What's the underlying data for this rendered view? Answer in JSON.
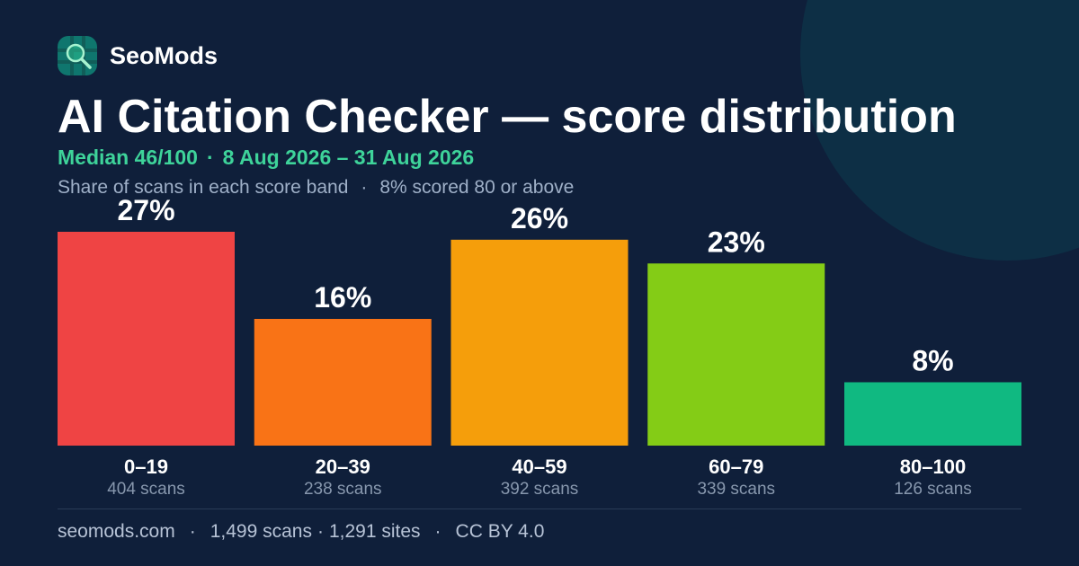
{
  "brand": {
    "name": "SeoMods",
    "logo_icon": "magnifier-grid-icon"
  },
  "header": {
    "title": "AI Citation Checker — score distribution",
    "median": "Median 46/100",
    "date_range": "8 Aug 2026 – 31 Aug 2026",
    "subtitle": "Share of scans in each score band",
    "subnote": "8% scored 80 or above",
    "separator": "·"
  },
  "chart_data": {
    "type": "bar",
    "categories": [
      "0–19",
      "20–39",
      "40–59",
      "60–79",
      "80–100"
    ],
    "values": [
      27,
      16,
      26,
      23,
      8
    ],
    "value_labels": [
      "27%",
      "16%",
      "26%",
      "23%",
      "8%"
    ],
    "counts": [
      "404 scans",
      "238 scans",
      "392 scans",
      "339 scans",
      "126 scans"
    ],
    "colors": [
      "#ef4444",
      "#f97316",
      "#f59e0b",
      "#84cc16",
      "#10b981"
    ],
    "unit": "%",
    "ylim": [
      0,
      27
    ],
    "grid": false,
    "legend": "none"
  },
  "footer": {
    "site": "seomods.com",
    "scans": "1,499 scans",
    "sites": "1,291 sites",
    "license": "CC BY 4.0"
  },
  "colors": {
    "background": "#0f1f3a",
    "accent": "#3ed39a",
    "muted": "#9fb0c8"
  }
}
